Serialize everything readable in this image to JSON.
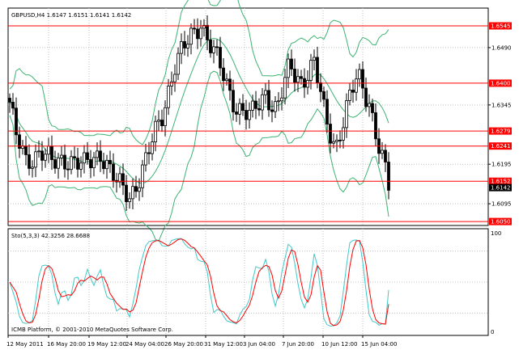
{
  "header": {
    "symbol_line": "GBPUSD,H4  1.6147 1.6151 1.6141 1.6142"
  },
  "indicator": {
    "title": "Sto(5,3,3) 42.3256 28.6688",
    "scale_top": "100",
    "scale_bottom": "0"
  },
  "footer": {
    "copyright": "ICMB Platform, © 2001-2010 MetaQuotes Software Corp."
  },
  "colors": {
    "background": "#ffffff",
    "grid": "#c0c0c0",
    "candles": "#000000",
    "bollinger": "#3cb371",
    "levels": "#ff0000",
    "stoch_main": "#40c8c8",
    "stoch_signal": "#ff0000"
  },
  "price_axis": {
    "ticks": [
      "1.6490",
      "1.6345",
      "1.6195",
      "1.6095"
    ]
  },
  "levels": [
    {
      "label": "1.6545"
    },
    {
      "label": "1.6400"
    },
    {
      "label": "1.6279"
    },
    {
      "label": "1.6241"
    },
    {
      "label": "1.6152"
    },
    {
      "label": "1.6050"
    }
  ],
  "current_price_label": "1.6142",
  "time_axis": {
    "labels": [
      "12 May 2011",
      "16 May 20:00",
      "19 May 12:00",
      "24 May 04:00",
      "26 May 20:00",
      "31 May 12:00",
      "3 Jun 04:00",
      "7 Jun 20:00",
      "10 Jun 12:00",
      "15 Jun 04:00"
    ]
  },
  "chart_data": {
    "type": "candlestick",
    "instrument": "GBPUSD",
    "timeframe": "H4",
    "last_bar": {
      "open": 1.6147,
      "high": 1.6151,
      "low": 1.6141,
      "close": 1.6142
    },
    "ylim": [
      1.604,
      1.659
    ],
    "horizontal_levels": [
      1.6545,
      1.64,
      1.6279,
      1.6241,
      1.6152,
      1.605
    ],
    "stochastic": {
      "k_period": 5,
      "d_period": 3,
      "slowing": 3,
      "main": 42.3256,
      "signal": 28.6688,
      "range": [
        0,
        100
      ]
    }
  }
}
